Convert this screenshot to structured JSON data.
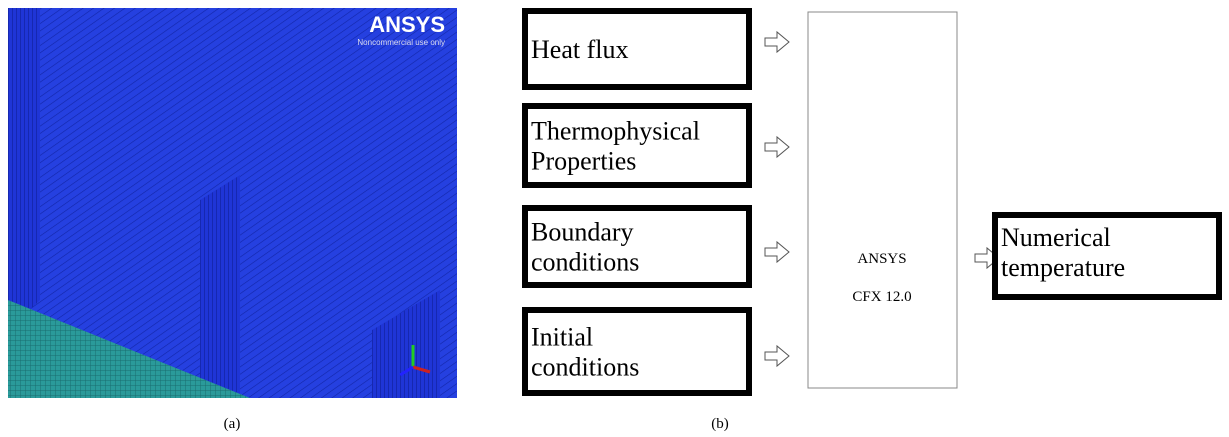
{
  "panel_a": {
    "logo": "ANSYS",
    "logo_note": "Noncommercial use only",
    "caption": "(a)"
  },
  "panel_b": {
    "inputs": [
      {
        "lines": [
          "Heat flux"
        ]
      },
      {
        "lines": [
          "Thermophysical",
          "Properties"
        ]
      },
      {
        "lines": [
          "Boundary",
          "conditions"
        ]
      },
      {
        "lines": [
          "Initial",
          "conditions"
        ]
      }
    ],
    "solver": {
      "lines": [
        "ANSYS",
        "CFX 12.0"
      ]
    },
    "output": {
      "lines": [
        "Numerical",
        "temperature"
      ]
    },
    "caption": "(b)"
  }
}
